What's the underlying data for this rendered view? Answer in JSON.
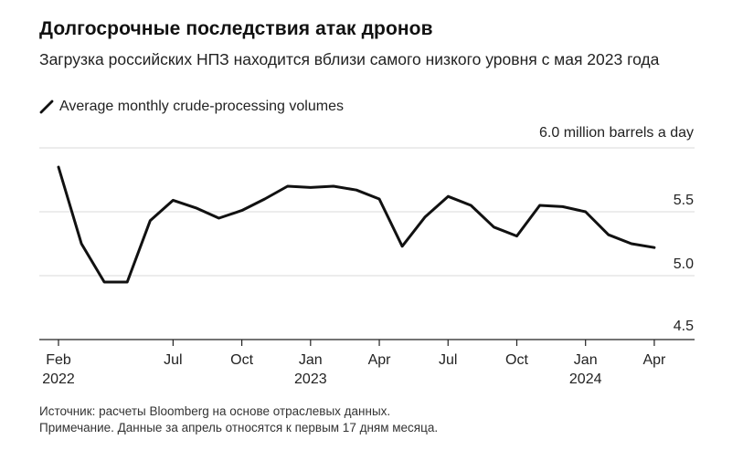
{
  "title": "Долгосрочные последствия атак дронов",
  "subtitle": "Загрузка российских НПЗ находится вблизи самого низкого уровня с мая 2023 года",
  "legend_label": "Average monthly crude-processing volumes",
  "footer": {
    "source": "Источник: расчеты Bloomberg на основе отраслевых данных.",
    "note": "Примечание. Данные за апрель относятся к первым 17 дням месяца."
  },
  "colors": {
    "line": "#111111",
    "grid": "#d9d9d9",
    "axis": "#222222"
  },
  "chart_data": {
    "type": "line",
    "series": [
      {
        "x": [
          "2022-02",
          "2022-03",
          "2022-04",
          "2022-05",
          "2022-06",
          "2022-07",
          "2022-08",
          "2022-09",
          "2022-10",
          "2022-11",
          "2022-12",
          "2023-01",
          "2023-02",
          "2023-03",
          "2023-04",
          "2023-05",
          "2023-06",
          "2023-07",
          "2023-08",
          "2023-09",
          "2023-10",
          "2023-11",
          "2023-12",
          "2024-01",
          "2024-02",
          "2024-03",
          "2024-04"
        ],
        "values": [
          5.85,
          5.25,
          4.95,
          4.95,
          5.43,
          5.59,
          5.53,
          5.45,
          5.51,
          5.6,
          5.7,
          5.69,
          5.7,
          5.67,
          5.6,
          5.23,
          5.46,
          5.62,
          5.55,
          5.38,
          5.31,
          5.55,
          5.54,
          5.5,
          5.32,
          5.25,
          5.22
        ]
      }
    ],
    "y_unit_label": "6.0 million barrels a day",
    "yticks": [
      {
        "value": 6.0,
        "label": ""
      },
      {
        "value": 5.5,
        "label": "5.5"
      },
      {
        "value": 5.0,
        "label": "5.0"
      },
      {
        "value": 4.5,
        "label": "4.5"
      }
    ],
    "xticks": [
      {
        "x": "2022-02",
        "label": "Feb",
        "year": "2022"
      },
      {
        "x": "2022-07",
        "label": "Jul",
        "year": ""
      },
      {
        "x": "2022-10",
        "label": "Oct",
        "year": ""
      },
      {
        "x": "2023-01",
        "label": "Jan",
        "year": "2023"
      },
      {
        "x": "2023-04",
        "label": "Apr",
        "year": ""
      },
      {
        "x": "2023-07",
        "label": "Jul",
        "year": ""
      },
      {
        "x": "2023-10",
        "label": "Oct",
        "year": ""
      },
      {
        "x": "2024-01",
        "label": "Jan",
        "year": "2024"
      },
      {
        "x": "2024-04",
        "label": "Apr",
        "year": ""
      }
    ],
    "ylim": [
      4.5,
      6.0
    ],
    "xlim": [
      "2022-02",
      "2024-05"
    ],
    "grid": true
  }
}
